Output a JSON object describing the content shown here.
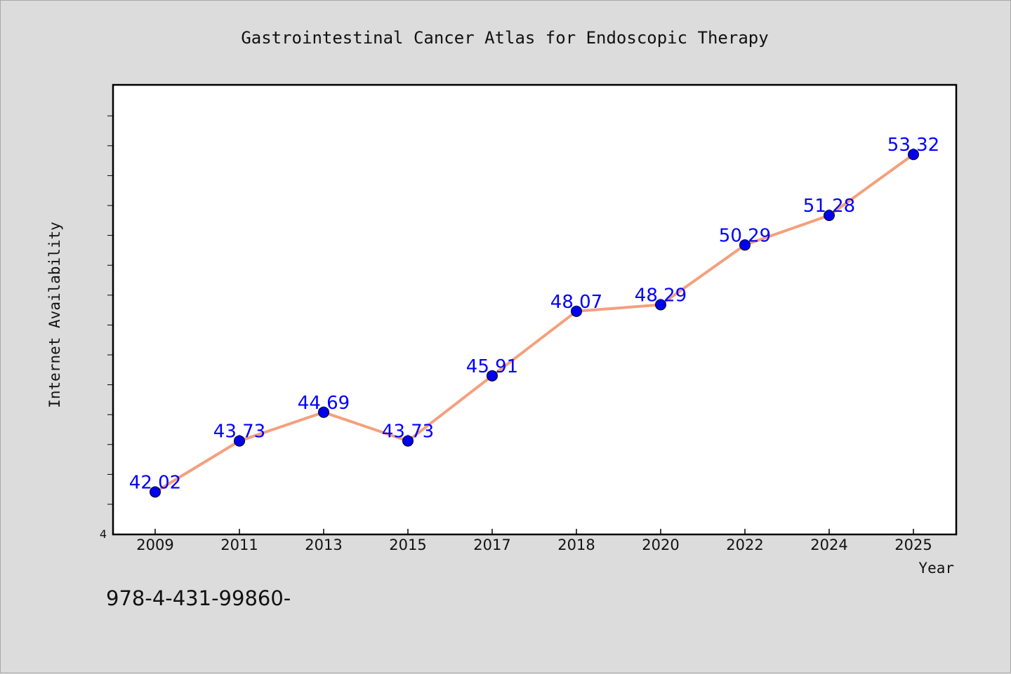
{
  "chart_data": {
    "type": "line",
    "title": "Gastrointestinal Cancer Atlas for Endoscopic Therapy",
    "xlabel": "Year",
    "ylabel": "Internet Availability",
    "categories": [
      "2009",
      "2011",
      "2013",
      "2015",
      "2017",
      "2018",
      "2020",
      "2022",
      "2024",
      "2025"
    ],
    "values": [
      42.02,
      43.73,
      44.69,
      43.73,
      45.91,
      48.07,
      48.29,
      50.29,
      51.28,
      53.32
    ],
    "value_labels": [
      "42.02",
      "43.73",
      "44.69",
      "43.73",
      "45.91",
      "48.07",
      "48.29",
      "50.29",
      "51.28",
      "53.32"
    ],
    "y_tick_label": "4",
    "ylim": [
      40.6,
      55.65
    ],
    "grid": false,
    "line_color": "#f4a07c",
    "marker_color": "#0000ee",
    "label_color": "#0000ff",
    "plot_background": "#ffffff",
    "page_background": "#dcdcdc"
  },
  "footer": {
    "code": "978-4-431-99860-"
  }
}
